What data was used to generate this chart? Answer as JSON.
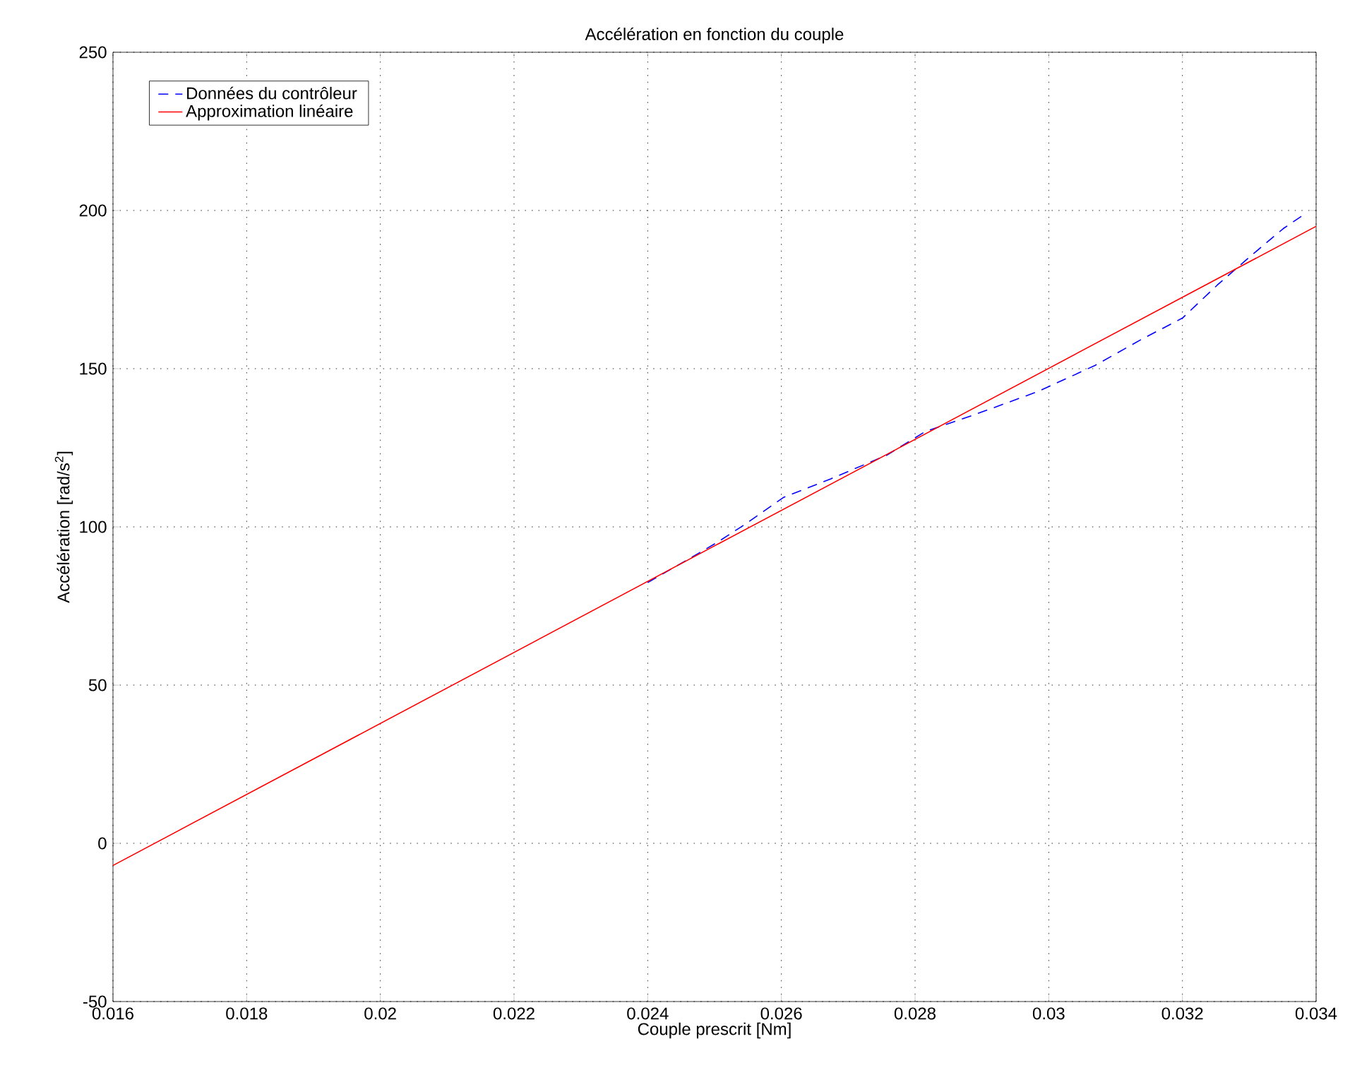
{
  "chart_data": {
    "type": "line",
    "title": "Accélération en fonction du couple",
    "xlabel": "Couple prescrit [Nm]",
    "ylabel": "Accélération [rad/s$^{2}$]",
    "xlim": [
      0.016,
      0.034
    ],
    "ylim": [
      -50,
      250
    ],
    "xticks": [
      0.016,
      0.018,
      0.02,
      0.022,
      0.024,
      0.026,
      0.028,
      0.03,
      0.032,
      0.034
    ],
    "yticks": [
      -50,
      0,
      50,
      100,
      150,
      200,
      250
    ],
    "grid": true,
    "legend": "top left",
    "marker": "none",
    "series": [
      {
        "name": "Données du contrôleur",
        "color": "#0000ff",
        "line_style": "dashed",
        "x": [
          0.024,
          0.02455,
          0.02504,
          0.02547,
          0.02603,
          0.02674,
          0.02758,
          0.02815,
          0.02892,
          0.02984,
          0.03069,
          0.03139,
          0.032,
          0.03252,
          0.03301,
          0.03351,
          0.03386
        ],
        "values": [
          82.4,
          89.1,
          95.1,
          101.0,
          109.3,
          115.2,
          122.7,
          130.1,
          135.7,
          142.8,
          151.0,
          159.3,
          166.0,
          176.4,
          185.4,
          194.3,
          199.3
        ]
      },
      {
        "name": "Approximation linéaire",
        "color": "#ff0000",
        "line_style": "solid",
        "x": [
          0.016,
          0.034
        ],
        "values": [
          -7,
          195
        ]
      }
    ]
  }
}
